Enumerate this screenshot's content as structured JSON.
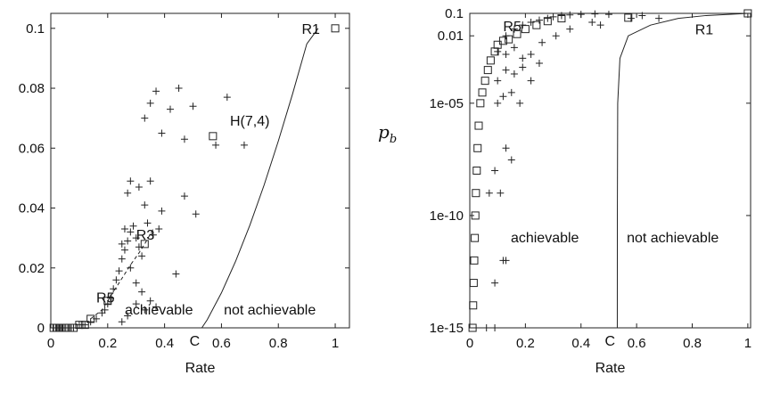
{
  "chart_data": [
    {
      "type": "scatter",
      "title": "",
      "xlabel": "Rate",
      "ylabel": "",
      "xlim": [
        0,
        1.05
      ],
      "ylim": [
        0,
        0.105
      ],
      "xticks": [
        0,
        0.2,
        0.4,
        0.6,
        0.8,
        1
      ],
      "xtick_labels": [
        "0",
        "0.2",
        "0.4",
        "0.6",
        "0.8",
        "1"
      ],
      "yticks": [
        0,
        0.02,
        0.04,
        0.06,
        0.08,
        0.1
      ],
      "ytick_labels": [
        "0",
        "0.02",
        "0.04",
        "0.06",
        "0.08",
        "0.1"
      ],
      "grid": false,
      "series": [
        {
          "marker": "plus",
          "points": [
            [
              0.01,
              0
            ],
            [
              0.02,
              0
            ],
            [
              0.03,
              0
            ],
            [
              0.04,
              0
            ],
            [
              0.06,
              0
            ],
            [
              0.08,
              0
            ],
            [
              0.1,
              0.001
            ],
            [
              0.12,
              0.001
            ],
            [
              0.14,
              0.002
            ],
            [
              0.16,
              0.003
            ],
            [
              0.18,
              0.005
            ],
            [
              0.19,
              0.006
            ],
            [
              0.2,
              0.008
            ],
            [
              0.21,
              0.01
            ],
            [
              0.22,
              0.013
            ],
            [
              0.23,
              0.016
            ],
            [
              0.24,
              0.019
            ],
            [
              0.25,
              0.023
            ],
            [
              0.26,
              0.026
            ],
            [
              0.27,
              0.029
            ],
            [
              0.28,
              0.032
            ],
            [
              0.29,
              0.034
            ],
            [
              0.3,
              0.03
            ],
            [
              0.31,
              0.027
            ],
            [
              0.32,
              0.024
            ],
            [
              0.25,
              0.028
            ],
            [
              0.26,
              0.033
            ],
            [
              0.27,
              0.045
            ],
            [
              0.28,
              0.049
            ],
            [
              0.31,
              0.047
            ],
            [
              0.33,
              0.041
            ],
            [
              0.34,
              0.035
            ],
            [
              0.35,
              0.049
            ],
            [
              0.36,
              0.031
            ],
            [
              0.38,
              0.033
            ],
            [
              0.39,
              0.039
            ],
            [
              0.28,
              0.02
            ],
            [
              0.3,
              0.015
            ],
            [
              0.32,
              0.012
            ],
            [
              0.35,
              0.009
            ],
            [
              0.44,
              0.018
            ],
            [
              0.47,
              0.044
            ],
            [
              0.51,
              0.038
            ],
            [
              0.33,
              0.07
            ],
            [
              0.35,
              0.075
            ],
            [
              0.37,
              0.079
            ],
            [
              0.39,
              0.065
            ],
            [
              0.42,
              0.073
            ],
            [
              0.45,
              0.08
            ],
            [
              0.47,
              0.063
            ],
            [
              0.5,
              0.074
            ],
            [
              0.58,
              0.061
            ],
            [
              0.62,
              0.077
            ],
            [
              0.68,
              0.061
            ],
            [
              0.3,
              0.008
            ],
            [
              0.33,
              0.006
            ],
            [
              0.37,
              0.007
            ],
            [
              0.27,
              0.004
            ],
            [
              0.25,
              0.002
            ]
          ]
        },
        {
          "marker": "square",
          "points": [
            [
              0.01,
              0
            ],
            [
              0.02,
              0
            ],
            [
              0.03,
              0
            ],
            [
              0.04,
              0
            ],
            [
              0.05,
              0
            ],
            [
              0.06,
              0
            ],
            [
              0.08,
              0
            ],
            [
              0.1,
              0.001
            ],
            [
              0.12,
              0.001
            ],
            [
              0.14,
              0.003
            ],
            [
              0.2,
              0.009
            ],
            [
              0.33,
              0.028
            ],
            [
              0.57,
              0.064
            ],
            [
              1,
              0.1
            ]
          ]
        },
        {
          "style": "dashed",
          "points": [
            [
              0.14,
              0.003
            ],
            [
              0.18,
              0.006
            ],
            [
              0.2,
              0.009
            ],
            [
              0.24,
              0.015
            ],
            [
              0.28,
              0.021
            ],
            [
              0.31,
              0.025
            ],
            [
              0.33,
              0.028
            ],
            [
              0.36,
              0.033
            ]
          ]
        },
        {
          "style": "solid",
          "points": [
            [
              0.531,
              0
            ],
            [
              0.55,
              0.0027
            ],
            [
              0.6,
              0.0117
            ],
            [
              0.65,
              0.0223
            ],
            [
              0.7,
              0.0343
            ],
            [
              0.75,
              0.0477
            ],
            [
              0.8,
              0.0624
            ],
            [
              0.85,
              0.0781
            ],
            [
              0.9,
              0.0948
            ],
            [
              0.94,
              0.1
            ]
          ]
        }
      ],
      "annotations": [
        {
          "text": "R1",
          "x": 0.97,
          "y": 0.1
        },
        {
          "text": "H(7,4)",
          "x": 0.63,
          "y": 0.069
        },
        {
          "text": "R3",
          "x": 0.3,
          "y": 0.031
        },
        {
          "text": "R5",
          "x": 0.16,
          "y": 0.01
        },
        {
          "text": "achievable",
          "x": 0.38,
          "y": 0.006
        },
        {
          "text": "not achievable",
          "x": 0.77,
          "y": 0.006
        },
        {
          "text": "C",
          "x": 0.531,
          "y": -0.005
        }
      ]
    },
    {
      "type": "scatter",
      "title": "",
      "xlabel": "Rate",
      "ylabel": "p_b",
      "yscale": "log",
      "xlim": [
        0,
        1.01
      ],
      "ylim": [
        1e-15,
        0.1
      ],
      "xticks": [
        0,
        0.2,
        0.4,
        0.6,
        0.8,
        1
      ],
      "xtick_labels": [
        "0",
        "0.2",
        "0.4",
        "0.6",
        "0.8",
        "1"
      ],
      "yticks": [
        1e-15,
        1e-10,
        1e-05,
        0.01,
        0.1
      ],
      "ytick_labels": [
        "1e-15",
        "1e-10",
        "1e-05",
        "0.01",
        "0.1"
      ],
      "grid": false,
      "series": [
        {
          "marker": "square",
          "points": [
            [
              0.01,
              1e-15
            ],
            [
              0.012,
              1e-14
            ],
            [
              0.014,
              1e-13
            ],
            [
              0.016,
              1e-12
            ],
            [
              0.018,
              1e-11
            ],
            [
              0.02,
              1e-10
            ],
            [
              0.022,
              1e-09
            ],
            [
              0.025,
              1e-08
            ],
            [
              0.028,
              1e-07
            ],
            [
              0.032,
              1e-06
            ],
            [
              0.038,
              1e-05
            ],
            [
              0.045,
              3e-05
            ],
            [
              0.055,
              0.0001
            ],
            [
              0.065,
              0.0003
            ],
            [
              0.075,
              0.0008
            ],
            [
              0.09,
              0.002
            ],
            [
              0.1,
              0.004
            ],
            [
              0.12,
              0.006
            ],
            [
              0.14,
              0.007
            ],
            [
              0.17,
              0.012
            ],
            [
              0.2,
              0.02
            ],
            [
              0.24,
              0.03
            ],
            [
              0.28,
              0.045
            ],
            [
              0.33,
              0.06
            ],
            [
              0.57,
              0.064
            ],
            [
              1,
              0.1
            ]
          ]
        },
        {
          "marker": "plus",
          "points": [
            [
              0.13,
              0.01
            ],
            [
              0.16,
              0.02
            ],
            [
              0.19,
              0.03
            ],
            [
              0.22,
              0.04
            ],
            [
              0.25,
              0.05
            ],
            [
              0.28,
              0.06
            ],
            [
              0.3,
              0.07
            ],
            [
              0.33,
              0.08
            ],
            [
              0.36,
              0.085
            ],
            [
              0.4,
              0.09
            ],
            [
              0.45,
              0.094
            ],
            [
              0.5,
              0.09
            ],
            [
              0.58,
              0.06
            ],
            [
              0.62,
              0.08
            ],
            [
              0.68,
              0.06
            ],
            [
              0.1,
              0.002
            ],
            [
              0.13,
              0.0015
            ],
            [
              0.16,
              0.003
            ],
            [
              0.19,
              0.001
            ],
            [
              0.22,
              0.0015
            ],
            [
              0.26,
              0.005
            ],
            [
              0.31,
              0.01
            ],
            [
              0.36,
              0.02
            ],
            [
              0.44,
              0.04
            ],
            [
              0.47,
              0.03
            ],
            [
              0.1,
              0.0001
            ],
            [
              0.13,
              0.0003
            ],
            [
              0.16,
              0.0002
            ],
            [
              0.19,
              0.0004
            ],
            [
              0.22,
              0.0001
            ],
            [
              0.25,
              0.0006
            ],
            [
              0.1,
              1e-05
            ],
            [
              0.12,
              2e-05
            ],
            [
              0.15,
              3e-05
            ],
            [
              0.18,
              1e-05
            ],
            [
              0.13,
              1e-07
            ],
            [
              0.15,
              3e-08
            ],
            [
              0.07,
              1e-09
            ],
            [
              0.09,
              1e-08
            ],
            [
              0.11,
              1e-09
            ],
            [
              0.12,
              1e-12
            ],
            [
              0.13,
              1e-12
            ],
            [
              0.09,
              1e-13
            ],
            [
              0.06,
              1e-15
            ],
            [
              0.09,
              1e-15
            ]
          ]
        },
        {
          "style": "solid",
          "points": [
            [
              0.5305,
              1e-15
            ],
            [
              0.5307,
              1e-10
            ],
            [
              0.532,
              1e-05
            ],
            [
              0.54,
              0.001
            ],
            [
              0.57,
              0.01
            ],
            [
              0.65,
              0.03
            ],
            [
              0.75,
              0.06
            ],
            [
              0.85,
              0.08
            ],
            [
              1,
              0.1
            ]
          ]
        }
      ],
      "annotations": [
        {
          "text": "R1",
          "x": 0.9,
          "y": 0.02
        },
        {
          "text": "R5",
          "x": 0.12,
          "y": 0.025
        },
        {
          "text": "achievable",
          "x": 0.27,
          "y": 1e-11
        },
        {
          "text": "not achievable",
          "x": 0.73,
          "y": 1e-11
        },
        {
          "text": "C",
          "x": 0.53,
          "y": 1e-15
        }
      ]
    }
  ],
  "shared_ylabel": {
    "text": "p",
    "subscript": "b"
  }
}
